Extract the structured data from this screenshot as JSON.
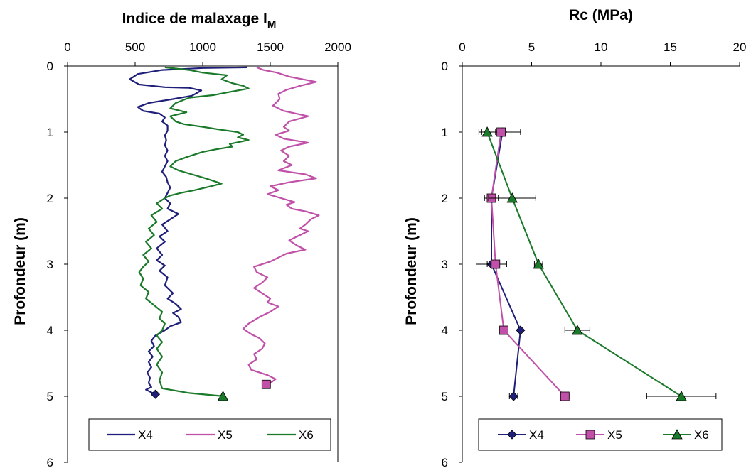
{
  "chart_data": [
    {
      "type": "line",
      "title": "Indice de malaxage I",
      "title_subscript": "M",
      "xlabel": "",
      "ylabel": "Profondeur (m)",
      "x_axis_position": "top",
      "xlim": [
        0,
        2000
      ],
      "ylim": [
        0,
        6
      ],
      "y_inverted": true,
      "x_ticks": [
        "0",
        "500",
        "1000",
        "1500",
        "2000"
      ],
      "y_ticks": [
        "0",
        "1",
        "2",
        "3",
        "4",
        "5",
        "6"
      ],
      "legend_position": "bottom",
      "series": [
        {
          "name": "X4",
          "color": "#1f1f7a",
          "marker": "diamond",
          "points": [
            [
              1330,
              0.02
            ],
            [
              1000,
              0.03
            ],
            [
              700,
              0.06
            ],
            [
              520,
              0.12
            ],
            [
              460,
              0.2
            ],
            [
              530,
              0.28
            ],
            [
              720,
              0.32
            ],
            [
              900,
              0.33
            ],
            [
              990,
              0.37
            ],
            [
              920,
              0.45
            ],
            [
              780,
              0.5
            ],
            [
              600,
              0.56
            ],
            [
              520,
              0.62
            ],
            [
              560,
              0.68
            ],
            [
              680,
              0.72
            ],
            [
              720,
              0.78
            ],
            [
              700,
              0.84
            ],
            [
              740,
              0.9
            ],
            [
              740,
              0.98
            ],
            [
              720,
              1.05
            ],
            [
              730,
              1.12
            ],
            [
              720,
              1.2
            ],
            [
              740,
              1.28
            ],
            [
              720,
              1.36
            ],
            [
              740,
              1.44
            ],
            [
              720,
              1.52
            ],
            [
              700,
              1.6
            ],
            [
              730,
              1.68
            ],
            [
              740,
              1.76
            ],
            [
              760,
              1.84
            ],
            [
              740,
              1.92
            ],
            [
              720,
              2.0
            ],
            [
              760,
              2.08
            ],
            [
              740,
              2.16
            ],
            [
              820,
              2.24
            ],
            [
              760,
              2.32
            ],
            [
              700,
              2.4
            ],
            [
              740,
              2.5
            ],
            [
              680,
              2.58
            ],
            [
              720,
              2.66
            ],
            [
              660,
              2.76
            ],
            [
              700,
              2.86
            ],
            [
              660,
              2.94
            ],
            [
              720,
              3.02
            ],
            [
              680,
              3.1
            ],
            [
              740,
              3.2
            ],
            [
              720,
              3.32
            ],
            [
              780,
              3.44
            ],
            [
              740,
              3.52
            ],
            [
              800,
              3.6
            ],
            [
              840,
              3.68
            ],
            [
              780,
              3.74
            ],
            [
              820,
              3.8
            ],
            [
              840,
              3.88
            ],
            [
              760,
              3.94
            ],
            [
              720,
              4.0
            ],
            [
              650,
              4.08
            ],
            [
              620,
              4.16
            ],
            [
              640,
              4.24
            ],
            [
              600,
              4.32
            ],
            [
              630,
              4.4
            ],
            [
              600,
              4.48
            ],
            [
              620,
              4.56
            ],
            [
              590,
              4.64
            ],
            [
              610,
              4.72
            ],
            [
              600,
              4.8
            ],
            [
              620,
              4.86
            ],
            [
              580,
              4.9
            ],
            [
              640,
              4.96
            ]
          ],
          "endpoint": [
            650,
            4.97
          ]
        },
        {
          "name": "X5",
          "color": "#c050a8",
          "marker": "square",
          "points": [
            [
              1400,
              0.02
            ],
            [
              1450,
              0.06
            ],
            [
              1550,
              0.1
            ],
            [
              1640,
              0.16
            ],
            [
              1840,
              0.24
            ],
            [
              1720,
              0.3
            ],
            [
              1620,
              0.36
            ],
            [
              1560,
              0.42
            ],
            [
              1570,
              0.5
            ],
            [
              1520,
              0.6
            ],
            [
              1600,
              0.68
            ],
            [
              1780,
              0.76
            ],
            [
              1640,
              0.84
            ],
            [
              1600,
              0.92
            ],
            [
              1640,
              0.98
            ],
            [
              1540,
              1.04
            ],
            [
              1600,
              1.1
            ],
            [
              1780,
              1.16
            ],
            [
              1640,
              1.22
            ],
            [
              1580,
              1.28
            ],
            [
              1640,
              1.36
            ],
            [
              1600,
              1.44
            ],
            [
              1660,
              1.5
            ],
            [
              1560,
              1.58
            ],
            [
              1760,
              1.64
            ],
            [
              1840,
              1.7
            ],
            [
              1640,
              1.76
            ],
            [
              1500,
              1.82
            ],
            [
              1560,
              1.88
            ],
            [
              1480,
              1.94
            ],
            [
              1580,
              2.0
            ],
            [
              1680,
              2.06
            ],
            [
              1620,
              2.1
            ],
            [
              1660,
              2.16
            ],
            [
              1760,
              2.2
            ],
            [
              1860,
              2.26
            ],
            [
              1800,
              2.32
            ],
            [
              1760,
              2.4
            ],
            [
              1720,
              2.46
            ],
            [
              1780,
              2.5
            ],
            [
              1700,
              2.58
            ],
            [
              1640,
              2.64
            ],
            [
              1700,
              2.72
            ],
            [
              1760,
              2.78
            ],
            [
              1620,
              2.84
            ],
            [
              1560,
              2.9
            ],
            [
              1500,
              2.96
            ],
            [
              1380,
              3.04
            ],
            [
              1400,
              3.12
            ],
            [
              1480,
              3.2
            ],
            [
              1440,
              3.28
            ],
            [
              1380,
              3.36
            ],
            [
              1440,
              3.44
            ],
            [
              1500,
              3.52
            ],
            [
              1480,
              3.58
            ],
            [
              1560,
              3.64
            ],
            [
              1500,
              3.72
            ],
            [
              1420,
              3.8
            ],
            [
              1340,
              3.9
            ],
            [
              1300,
              3.98
            ],
            [
              1360,
              4.06
            ],
            [
              1420,
              4.12
            ],
            [
              1460,
              4.2
            ],
            [
              1440,
              4.28
            ],
            [
              1380,
              4.36
            ],
            [
              1400,
              4.44
            ],
            [
              1340,
              4.52
            ],
            [
              1360,
              4.6
            ],
            [
              1480,
              4.68
            ],
            [
              1540,
              4.74
            ],
            [
              1500,
              4.8
            ]
          ],
          "endpoint": [
            1470,
            4.82
          ]
        },
        {
          "name": "X6",
          "color": "#1a7a2a",
          "marker": "triangle",
          "points": [
            [
              720,
              0.02
            ],
            [
              900,
              0.06
            ],
            [
              1000,
              0.1
            ],
            [
              1180,
              0.14
            ],
            [
              1140,
              0.2
            ],
            [
              1220,
              0.26
            ],
            [
              1300,
              0.3
            ],
            [
              1340,
              0.34
            ],
            [
              1180,
              0.4
            ],
            [
              1080,
              0.44
            ],
            [
              900,
              0.48
            ],
            [
              800,
              0.56
            ],
            [
              760,
              0.64
            ],
            [
              880,
              0.7
            ],
            [
              760,
              0.76
            ],
            [
              800,
              0.84
            ],
            [
              860,
              0.88
            ],
            [
              1000,
              0.92
            ],
            [
              1120,
              0.96
            ],
            [
              1260,
              1.0
            ],
            [
              1300,
              1.04
            ],
            [
              1260,
              1.08
            ],
            [
              1340,
              1.12
            ],
            [
              1200,
              1.18
            ],
            [
              1220,
              1.22
            ],
            [
              1100,
              1.26
            ],
            [
              1000,
              1.3
            ],
            [
              940,
              1.34
            ],
            [
              880,
              1.38
            ],
            [
              800,
              1.44
            ],
            [
              760,
              1.52
            ],
            [
              820,
              1.58
            ],
            [
              920,
              1.64
            ],
            [
              1020,
              1.7
            ],
            [
              1080,
              1.74
            ],
            [
              1140,
              1.78
            ],
            [
              1060,
              1.82
            ],
            [
              940,
              1.88
            ],
            [
              840,
              1.92
            ],
            [
              760,
              1.96
            ],
            [
              720,
              2.0
            ],
            [
              660,
              2.08
            ],
            [
              700,
              2.16
            ],
            [
              620,
              2.26
            ],
            [
              660,
              2.36
            ],
            [
              600,
              2.46
            ],
            [
              640,
              2.56
            ],
            [
              580,
              2.66
            ],
            [
              620,
              2.76
            ],
            [
              560,
              2.86
            ],
            [
              600,
              2.96
            ],
            [
              560,
              3.04
            ],
            [
              530,
              3.12
            ],
            [
              560,
              3.22
            ],
            [
              540,
              3.32
            ],
            [
              600,
              3.42
            ],
            [
              580,
              3.52
            ],
            [
              640,
              3.62
            ],
            [
              700,
              3.72
            ],
            [
              680,
              3.82
            ],
            [
              720,
              3.9
            ],
            [
              700,
              4.0
            ],
            [
              660,
              4.08
            ],
            [
              700,
              4.18
            ],
            [
              660,
              4.28
            ],
            [
              700,
              4.4
            ],
            [
              660,
              4.52
            ],
            [
              700,
              4.64
            ],
            [
              680,
              4.76
            ],
            [
              700,
              4.88
            ],
            [
              900,
              4.95
            ],
            [
              1160,
              5.0
            ]
          ],
          "endpoint": [
            1150,
            5.0
          ]
        }
      ]
    },
    {
      "type": "line",
      "title": "Rc (MPa)",
      "xlabel": "",
      "ylabel": "Profondeur (m)",
      "x_axis_position": "top",
      "xlim": [
        0,
        20
      ],
      "ylim": [
        0,
        6
      ],
      "y_inverted": true,
      "x_ticks": [
        "0",
        "5",
        "10",
        "15",
        "20"
      ],
      "y_ticks": [
        "0",
        "1",
        "2",
        "3",
        "4",
        "5",
        "6"
      ],
      "legend_position": "bottom",
      "series": [
        {
          "name": "X4",
          "color": "#1f1f7a",
          "marker": "diamond",
          "points": [
            [
              2.9,
              1.0
            ],
            [
              2.1,
              2.0
            ],
            [
              2.1,
              3.0
            ],
            [
              4.2,
              4.0
            ],
            [
              3.7,
              5.0
            ]
          ],
          "error_x": [
            0,
            0,
            1.1,
            0,
            0.3
          ]
        },
        {
          "name": "X5",
          "color": "#c050a8",
          "marker": "square",
          "points": [
            [
              2.8,
              1.0
            ],
            [
              2.1,
              2.0
            ],
            [
              2.4,
              3.0
            ],
            [
              3.0,
              4.0
            ],
            [
              7.4,
              5.0
            ]
          ],
          "error_x": [
            1.4,
            0.5,
            0.6,
            0,
            0.3
          ]
        },
        {
          "name": "X6",
          "color": "#1a7a2a",
          "marker": "triangle",
          "points": [
            [
              1.8,
              1.0
            ],
            [
              3.6,
              2.0
            ],
            [
              5.5,
              3.0
            ],
            [
              8.3,
              4.0
            ],
            [
              15.8,
              5.0
            ]
          ],
          "error_x": [
            0.6,
            1.7,
            0.3,
            0.9,
            2.5
          ]
        }
      ]
    }
  ]
}
